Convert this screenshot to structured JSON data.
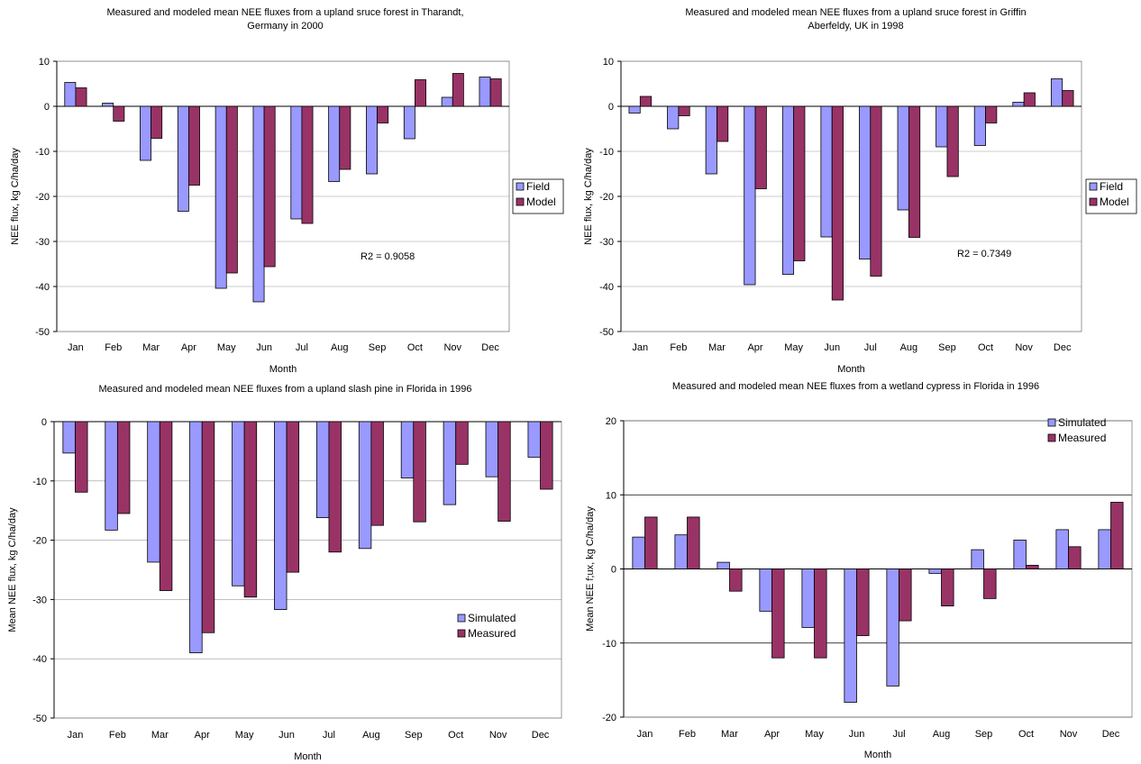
{
  "chart_data": [
    {
      "type": "bar",
      "title": "Measured and modeled mean NEE fluxes from a upland sruce forest in Tharandt, Germany in 2000",
      "title_lines": [
        "Measured and modeled mean NEE fluxes from a upland sruce forest in Tharandt,",
        "Germany in 2000"
      ],
      "xlabel": "Month",
      "ylabel": "NEE flux, kg C/ha/day",
      "ylim": [
        -50,
        10
      ],
      "yticks": [
        10,
        0,
        -10,
        -20,
        -30,
        -40,
        -50
      ],
      "categories": [
        "Jan",
        "Feb",
        "Mar",
        "Apr",
        "May",
        "Jun",
        "Jul",
        "Aug",
        "Sep",
        "Oct",
        "Nov",
        "Dec"
      ],
      "series": [
        {
          "name": "Field",
          "color": "#9999ff",
          "values": [
            5.3,
            0.7,
            -12,
            -23.3,
            -40.4,
            -43.4,
            -25,
            -16.7,
            -15,
            -7.2,
            2,
            6.5
          ]
        },
        {
          "name": "Model",
          "color": "#993366",
          "values": [
            4.1,
            -3.3,
            -7.1,
            -17.5,
            -37,
            -35.6,
            -26,
            -14,
            -3.7,
            5.9,
            7.3,
            6.1
          ]
        }
      ],
      "annotation": "R2 = 0.9058",
      "grid": true,
      "legend_position": "right"
    },
    {
      "type": "bar",
      "title": "Measured and modeled mean NEE fluxes from a upland sruce forest in Griffin Aberfeldy, UK in 1998",
      "title_lines": [
        "Measured and modeled mean NEE fluxes from a upland sruce forest in Griffin",
        "Aberfeldy, UK in 1998"
      ],
      "xlabel": "Month",
      "ylabel": "NEE flux, kg C/ha/day",
      "ylim": [
        -50,
        10
      ],
      "yticks": [
        10,
        0,
        -10,
        -20,
        -30,
        -40,
        -50
      ],
      "categories": [
        "Jan",
        "Feb",
        "Mar",
        "Apr",
        "May",
        "Jun",
        "Jul",
        "Aug",
        "Sep",
        "Oct",
        "Nov",
        "Dec"
      ],
      "series": [
        {
          "name": "Field",
          "color": "#9999ff",
          "values": [
            -1.5,
            -5,
            -15,
            -39.6,
            -37.3,
            -29,
            -33.9,
            -23,
            -9,
            -8.7,
            0.9,
            6.1
          ]
        },
        {
          "name": "Model",
          "color": "#993366",
          "values": [
            2.2,
            -2.1,
            -7.8,
            -18.3,
            -34.3,
            -43,
            -37.7,
            -29.1,
            -15.6,
            -3.7,
            3,
            3.5
          ]
        }
      ],
      "annotation": "R2 = 0.7349",
      "grid": true,
      "legend_position": "right"
    },
    {
      "type": "bar",
      "title": "Measured and modeled mean NEE fluxes from a upland slash pine in Florida in 1996",
      "title_lines": [
        "Measured and modeled mean NEE fluxes from a upland slash pine in Florida in 1996"
      ],
      "xlabel": "Month",
      "ylabel": "Mean NEE flux, kg C/ha/day",
      "ylim": [
        -50,
        0
      ],
      "yticks": [
        0,
        -10,
        -20,
        -30,
        -40,
        -50
      ],
      "categories": [
        "Jan",
        "Feb",
        "Mar",
        "Apr",
        "May",
        "Jun",
        "Jul",
        "Aug",
        "Sep",
        "Oct",
        "Nov",
        "Dec"
      ],
      "series": [
        {
          "name": "Simulated",
          "color": "#9999ff",
          "values": [
            -5.3,
            -18.3,
            -23.7,
            -39,
            -27.7,
            -31.7,
            -16.2,
            -21.4,
            -9.5,
            -14,
            -9.3,
            -6
          ]
        },
        {
          "name": "Measured",
          "color": "#993366",
          "values": [
            -11.9,
            -15.5,
            -28.5,
            -35.6,
            -29.6,
            -25.4,
            -22,
            -17.5,
            -16.9,
            -7.2,
            -16.8,
            -11.4
          ]
        }
      ],
      "grid": true,
      "legend_position": "right"
    },
    {
      "type": "bar",
      "title": "Measured and modeled mean NEE fluxes from a wetland cypress in Florida in 1996",
      "title_lines": [
        "Measured and modeled mean NEE fluxes from a wetland cypress in Florida in 1996"
      ],
      "xlabel": "Month",
      "ylabel": "Mean NEE f;ux, kg C/ha/day",
      "ylim": [
        -20,
        20
      ],
      "yticks": [
        20,
        10,
        0,
        -10,
        -20
      ],
      "categories": [
        "Jan",
        "Feb",
        "Mar",
        "Apr",
        "May",
        "Jun",
        "Jul",
        "Aug",
        "Sep",
        "Oct",
        "Nov",
        "Dec"
      ],
      "series": [
        {
          "name": "Simulated",
          "color": "#9999ff",
          "values": [
            4.3,
            4.6,
            0.9,
            -5.7,
            -7.9,
            -18,
            -15.8,
            -0.6,
            2.6,
            3.9,
            5.3,
            5.3
          ]
        },
        {
          "name": "Measured",
          "color": "#993366",
          "values": [
            7,
            7,
            -3,
            -12,
            -12,
            -9,
            -7,
            -5,
            -4,
            0.5,
            3,
            9
          ]
        }
      ],
      "grid": true,
      "legend_position": "top-right"
    }
  ]
}
